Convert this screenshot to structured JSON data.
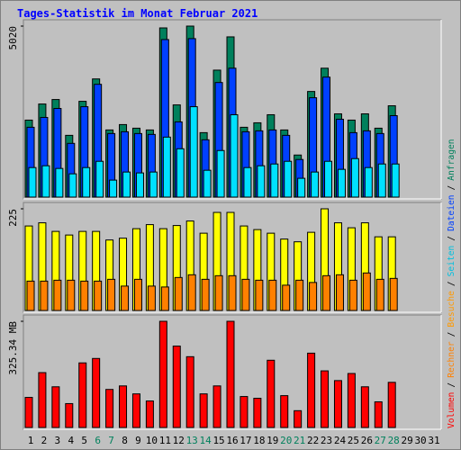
{
  "chart_data": {
    "type": "bar",
    "title": "Tages-Statistik im Monat Februar 2021",
    "categories": [
      "1",
      "2",
      "3",
      "4",
      "5",
      "6",
      "7",
      "8",
      "9",
      "10",
      "11",
      "12",
      "13",
      "14",
      "15",
      "16",
      "17",
      "18",
      "19",
      "20",
      "21",
      "22",
      "23",
      "24",
      "25",
      "26",
      "27",
      "28",
      "29",
      "30",
      "31"
    ],
    "category_colors": [
      "#000000",
      "#000000",
      "#000000",
      "#000000",
      "#000000",
      "#00805c",
      "#00805c",
      "#000000",
      "#000000",
      "#000000",
      "#000000",
      "#000000",
      "#00805c",
      "#00805c",
      "#000000",
      "#000000",
      "#000000",
      "#000000",
      "#000000",
      "#00805c",
      "#00805c",
      "#000000",
      "#000000",
      "#000000",
      "#000000",
      "#000000",
      "#00805c",
      "#00805c",
      "#000000",
      "#000000",
      "#000000"
    ],
    "legend_separator": "/",
    "panels": [
      {
        "ylim": [
          0,
          5020
        ],
        "yticks": [
          5020
        ],
        "series": [
          {
            "name": "Anfragen",
            "color": "#00805c",
            "legend_color": "#00805c",
            "values": [
              2260,
              2733,
              2865,
              1813,
              2812,
              3469,
              1971,
              2129,
              2023,
              1971,
              4967,
              2707,
              5020,
              1892,
              3727,
              4704,
              2050,
              2181,
              2418,
              1971,
              1235,
              3101,
              3784,
              2444,
              2260,
              2444,
              2023,
              2681,
              null,
              null,
              null
            ]
          },
          {
            "name": "Dateien",
            "color": "#0040ff",
            "legend_color": "#0040ff",
            "values": [
              2050,
              2339,
              2602,
              1577,
              2654,
              3311,
              1866,
              1918,
              1866,
              1840,
              4625,
              2208,
              4652,
              1682,
              3364,
              3784,
              1918,
              1945,
              1971,
              1813,
              1104,
              2917,
              3522,
              2286,
              1892,
              1945,
              1866,
              2391,
              null,
              null,
              null
            ]
          },
          {
            "name": "Seiten",
            "color": "#00e0ff",
            "legend_color": "#00c0e0",
            "values": [
              867,
              920,
              841,
              683,
              867,
              1051,
              499,
              736,
              710,
              736,
              1761,
              1419,
              2654,
              788,
              1367,
              2418,
              867,
              920,
              972,
              1051,
              552,
              736,
              1051,
              815,
              1130,
              867,
              972,
              972,
              null,
              null,
              null
            ]
          }
        ]
      },
      {
        "ylim": [
          0,
          225
        ],
        "yticks": [
          225
        ],
        "series": [
          {
            "name": "Besuche",
            "color": "#ffff00",
            "legend_color": "#ff9900",
            "values": [
              187,
              194,
              175,
              167,
              175,
              175,
              156,
              160,
              181,
              190,
              181,
              188,
              198,
              171,
              217,
              217,
              187,
              179,
              171,
              158,
              152,
              173,
              225,
              194,
              183,
              194,
              163,
              163,
              null,
              null,
              null
            ]
          },
          {
            "name": "Rechner",
            "color": "#ff8000",
            "legend_color": "#ff8000",
            "values": [
              65,
              65,
              67,
              67,
              65,
              65,
              69,
              54,
              69,
              54,
              52,
              73,
              79,
              69,
              77,
              77,
              69,
              67,
              67,
              56,
              67,
              62,
              77,
              79,
              67,
              83,
              69,
              71,
              null,
              null,
              null
            ]
          }
        ]
      },
      {
        "ylim": [
          0,
          325.34
        ],
        "yticks": [
          {
            "value": 325.34,
            "label": "325.34 MB"
          }
        ],
        "series": [
          {
            "name": "Volumen",
            "color": "#ff0000",
            "legend_color": "#ff0000",
            "values": [
              92.2,
              168.1,
              124.7,
              73.2,
              197.9,
              211.5,
              116.6,
              127.4,
              103.0,
              81.3,
              325.34,
              249.4,
              216.9,
              103.0,
              127.4,
              325.34,
              94.9,
              89.5,
              206.0,
              97.6,
              51.5,
              227.7,
              173.5,
              143.7,
              165.4,
              124.7,
              78.6,
              138.3,
              null,
              null,
              null
            ]
          }
        ]
      }
    ]
  }
}
